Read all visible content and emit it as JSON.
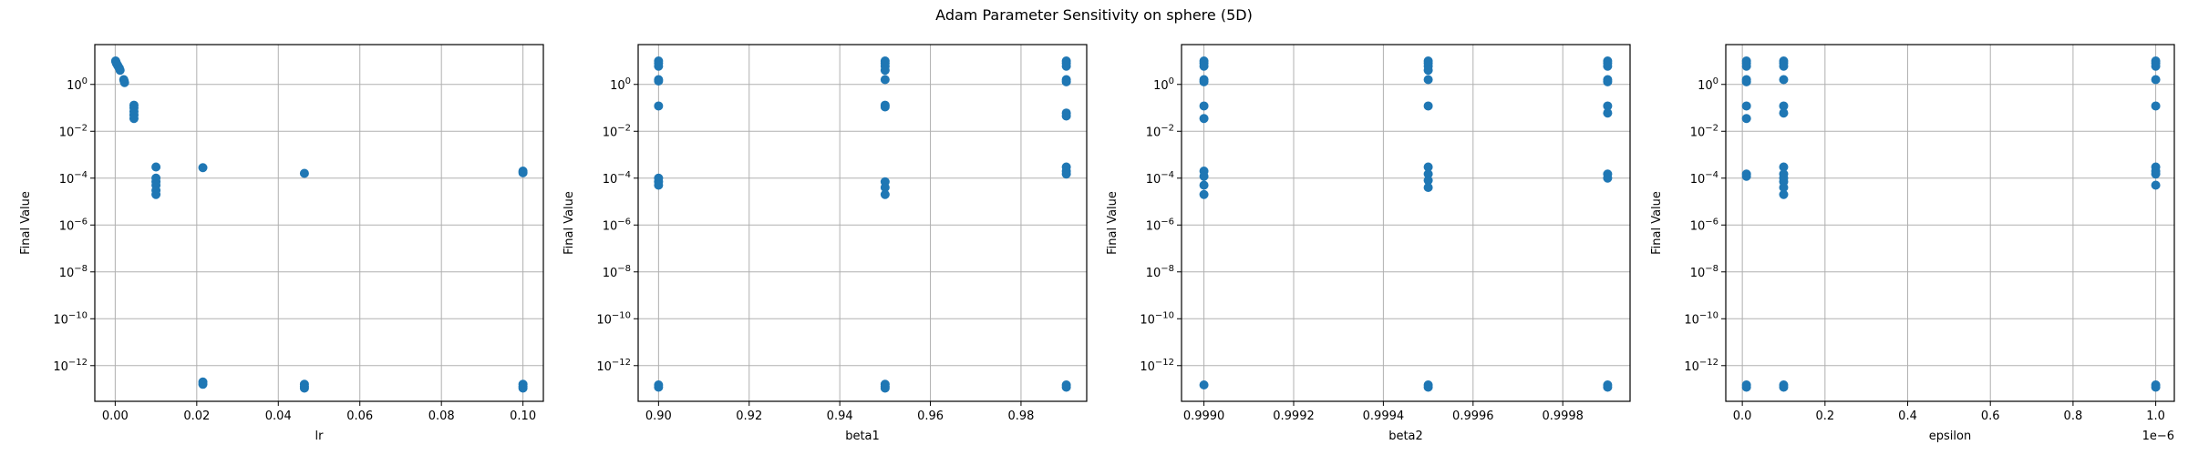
{
  "figure": {
    "title": "Adam Parameter Sensitivity on sphere (5D)",
    "marker_color": "#1f77b4",
    "grid_color": "#b0b0b0"
  },
  "chart_data": [
    {
      "type": "scatter",
      "xlabel": "lr",
      "ylabel": "Final Value",
      "yscale": "log",
      "grid": true,
      "xlim": [
        -0.005,
        0.105
      ],
      "ylim": [
        3e-14,
        50
      ],
      "xticks": [
        0.0,
        0.02,
        0.04,
        0.06,
        0.08,
        0.1
      ],
      "xticklabels": [
        "0.00",
        "0.02",
        "0.04",
        "0.06",
        "0.08",
        "0.10"
      ],
      "xoffset": "",
      "yticks": [
        1e-12,
        1e-10,
        1e-08,
        1e-06,
        0.0001,
        0.01,
        1
      ],
      "yticklabels": [
        "10^-12",
        "10^-10",
        "10^-8",
        "10^-6",
        "10^-4",
        "10^-2",
        "10^0"
      ],
      "x": [
        0.0001,
        0.0002,
        0.0003,
        0.0005,
        0.0007,
        0.001,
        0.0012,
        0.0021,
        0.0022,
        0.0023,
        0.0046,
        0.0046,
        0.0046,
        0.0046,
        0.0046,
        0.01,
        0.01,
        0.01,
        0.01,
        0.01,
        0.01,
        0.0215,
        0.0215,
        0.0215,
        0.0464,
        0.0464,
        0.0464,
        0.0464,
        0.1,
        0.1,
        0.1,
        0.1,
        0.1
      ],
      "y": [
        10,
        9,
        8,
        7,
        6,
        5,
        4,
        1.6,
        1.4,
        1.2,
        0.13,
        0.1,
        0.07,
        0.05,
        0.035,
        0.0003,
        0.0001,
        7e-05,
        5e-05,
        3e-05,
        2e-05,
        0.00028,
        2e-13,
        1.6e-13,
        0.00016,
        1.6e-13,
        1.3e-13,
        1.1e-13,
        0.0002,
        0.00017,
        1.6e-13,
        1.3e-13,
        1.1e-13
      ]
    },
    {
      "type": "scatter",
      "xlabel": "beta1",
      "ylabel": "Final Value",
      "yscale": "log",
      "grid": true,
      "xlim": [
        0.8955,
        0.9945
      ],
      "ylim": [
        3e-14,
        50
      ],
      "xticks": [
        0.9,
        0.92,
        0.94,
        0.96,
        0.98
      ],
      "xticklabels": [
        "0.90",
        "0.92",
        "0.94",
        "0.96",
        "0.98"
      ],
      "xoffset": "",
      "yticks": [
        1e-12,
        1e-10,
        1e-08,
        1e-06,
        0.0001,
        0.01,
        1
      ],
      "yticklabels": [
        "10^-12",
        "10^-10",
        "10^-8",
        "10^-6",
        "10^-4",
        "10^-2",
        "10^0"
      ],
      "x": [
        0.9,
        0.9,
        0.9,
        0.9,
        0.9,
        0.9,
        0.9,
        0.9,
        0.9,
        0.9,
        0.9,
        0.95,
        0.95,
        0.95,
        0.95,
        0.95,
        0.95,
        0.95,
        0.95,
        0.95,
        0.95,
        0.95,
        0.95,
        0.95,
        0.99,
        0.99,
        0.99,
        0.99,
        0.99,
        0.99,
        0.99,
        0.99,
        0.99,
        0.99,
        0.99,
        0.99
      ],
      "y": [
        10,
        8,
        6,
        1.6,
        1.4,
        0.12,
        0.0001,
        7e-05,
        5e-05,
        1.5e-13,
        1.2e-13,
        10,
        8,
        6,
        4,
        1.6,
        0.13,
        0.11,
        7e-05,
        4e-05,
        2e-05,
        1.6e-13,
        1.3e-13,
        1.1e-13,
        10,
        8,
        6,
        1.6,
        1.3,
        0.06,
        0.045,
        0.0003,
        0.0002,
        0.00015,
        1.5e-13,
        1.2e-13
      ]
    },
    {
      "type": "scatter",
      "xlabel": "beta2",
      "ylabel": "Final Value",
      "yscale": "log",
      "grid": true,
      "xlim": [
        0.99895,
        0.99995
      ],
      "ylim": [
        3e-14,
        50
      ],
      "xticks": [
        0.999,
        0.9992,
        0.9994,
        0.9996,
        0.9998
      ],
      "xticklabels": [
        "0.9990",
        "0.9992",
        "0.9994",
        "0.9996",
        "0.9998"
      ],
      "xoffset": "",
      "yticks": [
        1e-12,
        1e-10,
        1e-08,
        1e-06,
        0.0001,
        0.01,
        1
      ],
      "yticklabels": [
        "10^-12",
        "10^-10",
        "10^-8",
        "10^-6",
        "10^-4",
        "10^-2",
        "10^0"
      ],
      "x": [
        0.999,
        0.999,
        0.999,
        0.999,
        0.999,
        0.999,
        0.999,
        0.999,
        0.999,
        0.999,
        0.999,
        0.999,
        0.9995,
        0.9995,
        0.9995,
        0.9995,
        0.9995,
        0.9995,
        0.9995,
        0.9995,
        0.9995,
        0.9995,
        0.9995,
        0.9995,
        0.9999,
        0.9999,
        0.9999,
        0.9999,
        0.9999,
        0.9999,
        0.9999,
        0.9999,
        0.9999,
        0.9999,
        0.9999
      ],
      "y": [
        10,
        8,
        6,
        1.6,
        1.3,
        0.12,
        0.035,
        0.0002,
        0.00012,
        5e-05,
        2e-05,
        1.5e-13,
        10,
        8,
        6,
        4,
        1.6,
        0.12,
        0.0003,
        0.00015,
        8e-05,
        4e-05,
        1.5e-13,
        1.2e-13,
        10,
        8,
        6,
        1.6,
        1.3,
        0.12,
        0.06,
        0.00015,
        0.0001,
        1.5e-13,
        1.2e-13
      ]
    },
    {
      "type": "scatter",
      "xlabel": "epsilon",
      "ylabel": "Final Value",
      "yscale": "log",
      "grid": true,
      "xlim": [
        -4e-08,
        1.045e-06
      ],
      "ylim": [
        3e-14,
        50
      ],
      "xticks": [
        0,
        2e-07,
        4e-07,
        6e-07,
        8e-07,
        1e-06
      ],
      "xticklabels": [
        "0.0",
        "0.2",
        "0.4",
        "0.6",
        "0.8",
        "1.0"
      ],
      "xoffset": "1e−6",
      "yticks": [
        1e-12,
        1e-10,
        1e-08,
        1e-06,
        0.0001,
        0.01,
        1
      ],
      "yticklabels": [
        "10^-12",
        "10^-10",
        "10^-8",
        "10^-6",
        "10^-4",
        "10^-2",
        "10^0"
      ],
      "x": [
        1e-08,
        1e-08,
        1e-08,
        1e-08,
        1e-08,
        1e-08,
        1e-08,
        1e-08,
        1e-08,
        1e-08,
        1e-08,
        1e-07,
        1e-07,
        1e-07,
        1e-07,
        1e-07,
        1e-07,
        1e-07,
        1e-07,
        1e-07,
        1e-07,
        1e-07,
        1e-07,
        1e-07,
        1e-07,
        1e-06,
        1e-06,
        1e-06,
        1e-06,
        1e-06,
        1e-06,
        1e-06,
        1e-06,
        1e-06,
        1e-06,
        1e-06
      ],
      "y": [
        10,
        8,
        6,
        1.6,
        1.3,
        0.12,
        0.035,
        0.00015,
        0.00012,
        1.5e-13,
        1.2e-13,
        10,
        8,
        6,
        1.6,
        0.12,
        0.06,
        0.0003,
        0.00015,
        0.0001,
        7e-05,
        4e-05,
        2e-05,
        1.5e-13,
        1.2e-13,
        10,
        8,
        6,
        1.6,
        0.12,
        0.0003,
        0.0002,
        0.00015,
        5e-05,
        1.5e-13,
        1.2e-13
      ]
    }
  ]
}
